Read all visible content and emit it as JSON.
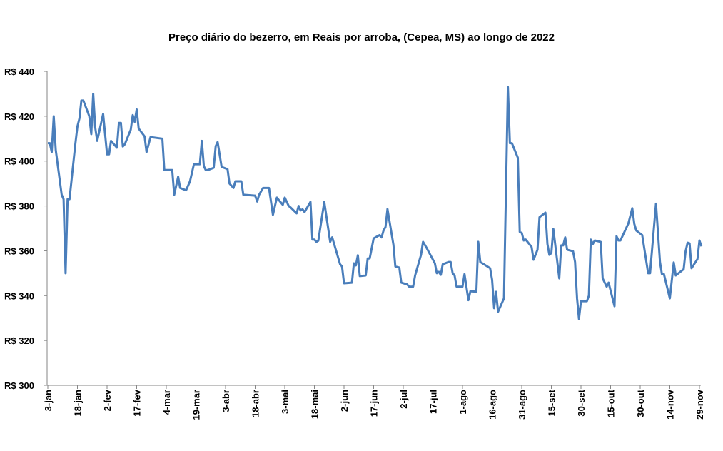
{
  "chart_data": {
    "type": "line",
    "title": "Preço diário do bezerro, em Reais por arroba, (Cepea, MS) ao longo de 2022",
    "xlabel": "",
    "ylabel": "",
    "ylim": [
      300,
      440
    ],
    "xlim": [
      "2022-01-03",
      "2022-11-29"
    ],
    "grid": false,
    "legend": "none",
    "line_color": "#4a7ebb",
    "y_ticks": [
      300,
      320,
      340,
      360,
      380,
      400,
      420,
      440
    ],
    "y_tick_labels": [
      "R$ 300",
      "R$ 320",
      "R$ 340",
      "R$ 360",
      "R$ 380",
      "R$ 400",
      "R$ 420",
      "R$ 440"
    ],
    "x_ticks": [
      "2022-01-03",
      "2022-01-18",
      "2022-02-02",
      "2022-02-17",
      "2022-03-04",
      "2022-03-19",
      "2022-04-03",
      "2022-04-18",
      "2022-05-03",
      "2022-05-18",
      "2022-06-02",
      "2022-06-17",
      "2022-07-02",
      "2022-07-17",
      "2022-08-01",
      "2022-08-16",
      "2022-08-31",
      "2022-09-15",
      "2022-09-30",
      "2022-10-15",
      "2022-10-30",
      "2022-11-14",
      "2022-11-29"
    ],
    "x_tick_labels": [
      "3-jan",
      "18-jan",
      "2-fev",
      "17-fev",
      "4-mar",
      "19-mar",
      "3-abr",
      "18-abr",
      "3-mai",
      "18-mai",
      "2-jun",
      "17-jun",
      "2-jul",
      "17-jul",
      "1-ago",
      "16-ago",
      "31-ago",
      "15-set",
      "30-set",
      "15-out",
      "30-out",
      "14-nov",
      "29-nov"
    ],
    "points": [
      [
        "2022-01-03",
        408
      ],
      [
        "2022-01-04",
        408
      ],
      [
        "2022-01-05",
        404
      ],
      [
        "2022-01-06",
        420
      ],
      [
        "2022-01-07",
        405
      ],
      [
        "2022-01-10",
        385
      ],
      [
        "2022-01-11",
        383
      ],
      [
        "2022-01-12",
        350
      ],
      [
        "2022-01-13",
        383
      ],
      [
        "2022-01-14",
        383
      ],
      [
        "2022-01-17",
        408
      ],
      [
        "2022-01-18",
        415.5
      ],
      [
        "2022-01-19",
        419
      ],
      [
        "2022-01-20",
        427
      ],
      [
        "2022-01-21",
        427
      ],
      [
        "2022-01-24",
        420
      ],
      [
        "2022-01-25",
        412
      ],
      [
        "2022-01-26",
        430
      ],
      [
        "2022-01-27",
        415
      ],
      [
        "2022-01-28",
        409
      ],
      [
        "2022-01-31",
        421
      ],
      [
        "2022-02-02",
        403
      ],
      [
        "2022-02-03",
        403
      ],
      [
        "2022-02-04",
        409
      ],
      [
        "2022-02-07",
        406
      ],
      [
        "2022-02-08",
        417
      ],
      [
        "2022-02-09",
        417
      ],
      [
        "2022-02-10",
        406.5
      ],
      [
        "2022-02-11",
        407.5
      ],
      [
        "2022-02-14",
        414
      ],
      [
        "2022-02-15",
        420.5
      ],
      [
        "2022-02-16",
        417.5
      ],
      [
        "2022-02-17",
        423
      ],
      [
        "2022-02-18",
        414.5
      ],
      [
        "2022-02-21",
        411
      ],
      [
        "2022-02-22",
        404
      ],
      [
        "2022-02-24",
        410.7
      ],
      [
        "2022-03-02",
        410
      ],
      [
        "2022-03-03",
        396
      ],
      [
        "2022-03-07",
        396
      ],
      [
        "2022-03-08",
        385
      ],
      [
        "2022-03-10",
        393
      ],
      [
        "2022-03-11",
        388
      ],
      [
        "2022-03-14",
        387
      ],
      [
        "2022-03-16",
        391
      ],
      [
        "2022-03-18",
        398.6
      ],
      [
        "2022-03-21",
        398.6
      ],
      [
        "2022-03-22",
        409
      ],
      [
        "2022-03-23",
        397.7
      ],
      [
        "2022-03-24",
        396
      ],
      [
        "2022-03-25",
        396
      ],
      [
        "2022-03-28",
        397
      ],
      [
        "2022-03-29",
        406.6
      ],
      [
        "2022-03-30",
        408.5
      ],
      [
        "2022-04-01",
        397.4
      ],
      [
        "2022-04-04",
        396.4
      ],
      [
        "2022-04-05",
        390
      ],
      [
        "2022-04-07",
        388
      ],
      [
        "2022-04-08",
        391
      ],
      [
        "2022-04-11",
        391
      ],
      [
        "2022-04-12",
        385
      ],
      [
        "2022-04-18",
        384.6
      ],
      [
        "2022-04-19",
        382
      ],
      [
        "2022-04-20",
        385
      ],
      [
        "2022-04-22",
        388
      ],
      [
        "2022-04-25",
        388
      ],
      [
        "2022-04-27",
        376
      ],
      [
        "2022-04-29",
        383.7
      ],
      [
        "2022-05-02",
        380.5
      ],
      [
        "2022-05-03",
        383.7
      ],
      [
        "2022-05-05",
        380
      ],
      [
        "2022-05-06",
        379.3
      ],
      [
        "2022-05-09",
        376.7
      ],
      [
        "2022-05-10",
        380
      ],
      [
        "2022-05-11",
        378
      ],
      [
        "2022-05-12",
        378.5
      ],
      [
        "2022-05-13",
        377.3
      ],
      [
        "2022-05-16",
        381.8
      ],
      [
        "2022-05-17",
        365
      ],
      [
        "2022-05-18",
        365
      ],
      [
        "2022-05-19",
        364
      ],
      [
        "2022-05-20",
        364.5
      ],
      [
        "2022-05-23",
        381.8
      ],
      [
        "2022-05-26",
        364
      ],
      [
        "2022-05-27",
        366
      ],
      [
        "2022-05-31",
        354
      ],
      [
        "2022-06-01",
        353
      ],
      [
        "2022-06-02",
        345.5
      ],
      [
        "2022-06-06",
        345.8
      ],
      [
        "2022-06-07",
        354.4
      ],
      [
        "2022-06-08",
        353.5
      ],
      [
        "2022-06-09",
        358
      ],
      [
        "2022-06-10",
        348.7
      ],
      [
        "2022-06-13",
        349
      ],
      [
        "2022-06-14",
        356.6
      ],
      [
        "2022-06-15",
        356.6
      ],
      [
        "2022-06-17",
        365.5
      ],
      [
        "2022-06-20",
        367
      ],
      [
        "2022-06-21",
        366
      ],
      [
        "2022-06-22",
        369
      ],
      [
        "2022-06-23",
        370.6
      ],
      [
        "2022-06-24",
        378.6
      ],
      [
        "2022-06-27",
        362.7
      ],
      [
        "2022-06-28",
        353
      ],
      [
        "2022-06-30",
        352.5
      ],
      [
        "2022-07-01",
        345.8
      ],
      [
        "2022-07-04",
        345
      ],
      [
        "2022-07-05",
        344
      ],
      [
        "2022-07-07",
        344
      ],
      [
        "2022-07-08",
        349
      ],
      [
        "2022-07-11",
        358.2
      ],
      [
        "2022-07-12",
        364
      ],
      [
        "2022-07-14",
        361
      ],
      [
        "2022-07-18",
        354.4
      ],
      [
        "2022-07-19",
        350
      ],
      [
        "2022-07-20",
        350.6
      ],
      [
        "2022-07-21",
        349.3
      ],
      [
        "2022-07-22",
        354
      ],
      [
        "2022-07-25",
        355
      ],
      [
        "2022-07-26",
        355
      ],
      [
        "2022-07-27",
        350
      ],
      [
        "2022-07-28",
        349
      ],
      [
        "2022-07-29",
        344
      ],
      [
        "2022-08-01",
        344
      ],
      [
        "2022-08-02",
        349.6
      ],
      [
        "2022-08-04",
        338
      ],
      [
        "2022-08-05",
        342
      ],
      [
        "2022-08-08",
        341.7
      ],
      [
        "2022-08-09",
        364
      ],
      [
        "2022-08-10",
        355
      ],
      [
        "2022-08-15",
        352.2
      ],
      [
        "2022-08-16",
        347
      ],
      [
        "2022-08-17",
        334.4
      ],
      [
        "2022-08-18",
        341.7
      ],
      [
        "2022-08-19",
        332.8
      ],
      [
        "2022-08-22",
        338.8
      ],
      [
        "2022-08-24",
        433
      ],
      [
        "2022-08-25",
        408
      ],
      [
        "2022-08-26",
        408
      ],
      [
        "2022-08-29",
        401.5
      ],
      [
        "2022-08-30",
        368.4
      ],
      [
        "2022-08-31",
        368
      ],
      [
        "2022-09-01",
        364.6
      ],
      [
        "2022-09-02",
        365
      ],
      [
        "2022-09-05",
        361.7
      ],
      [
        "2022-09-06",
        356
      ],
      [
        "2022-09-08",
        360.5
      ],
      [
        "2022-09-09",
        375
      ],
      [
        "2022-09-12",
        377
      ],
      [
        "2022-09-13",
        363
      ],
      [
        "2022-09-14",
        358.2
      ],
      [
        "2022-09-15",
        359
      ],
      [
        "2022-09-16",
        369.7
      ],
      [
        "2022-09-19",
        347.7
      ],
      [
        "2022-09-20",
        362.4
      ],
      [
        "2022-09-21",
        362.4
      ],
      [
        "2022-09-22",
        366
      ],
      [
        "2022-09-23",
        360.5
      ],
      [
        "2022-09-26",
        359.8
      ],
      [
        "2022-09-27",
        355
      ],
      [
        "2022-09-28",
        338.8
      ],
      [
        "2022-09-29",
        329.6
      ],
      [
        "2022-09-30",
        337.5
      ],
      [
        "2022-10-03",
        337.5
      ],
      [
        "2022-10-04",
        340
      ],
      [
        "2022-10-05",
        365
      ],
      [
        "2022-10-06",
        363
      ],
      [
        "2022-10-07",
        364.6
      ],
      [
        "2022-10-10",
        364
      ],
      [
        "2022-10-11",
        347.7
      ],
      [
        "2022-10-13",
        344
      ],
      [
        "2022-10-14",
        345.8
      ],
      [
        "2022-10-17",
        335.3
      ],
      [
        "2022-10-18",
        366.5
      ],
      [
        "2022-10-19",
        364.6
      ],
      [
        "2022-10-20",
        364.6
      ],
      [
        "2022-10-24",
        372.2
      ],
      [
        "2022-10-26",
        379
      ],
      [
        "2022-10-27",
        372
      ],
      [
        "2022-10-28",
        369
      ],
      [
        "2022-10-31",
        367
      ],
      [
        "2022-11-03",
        350
      ],
      [
        "2022-11-04",
        350
      ],
      [
        "2022-11-07",
        381
      ],
      [
        "2022-11-09",
        355
      ],
      [
        "2022-11-10",
        349.6
      ],
      [
        "2022-11-11",
        349.6
      ],
      [
        "2022-11-14",
        338.8
      ],
      [
        "2022-11-16",
        354.8
      ],
      [
        "2022-11-17",
        349
      ],
      [
        "2022-11-21",
        351.8
      ],
      [
        "2022-11-22",
        359.8
      ],
      [
        "2022-11-23",
        363.6
      ],
      [
        "2022-11-24",
        363.3
      ],
      [
        "2022-11-25",
        352.2
      ],
      [
        "2022-11-28",
        356.3
      ],
      [
        "2022-11-29",
        364.6
      ],
      [
        "2022-11-30",
        362
      ]
    ]
  }
}
